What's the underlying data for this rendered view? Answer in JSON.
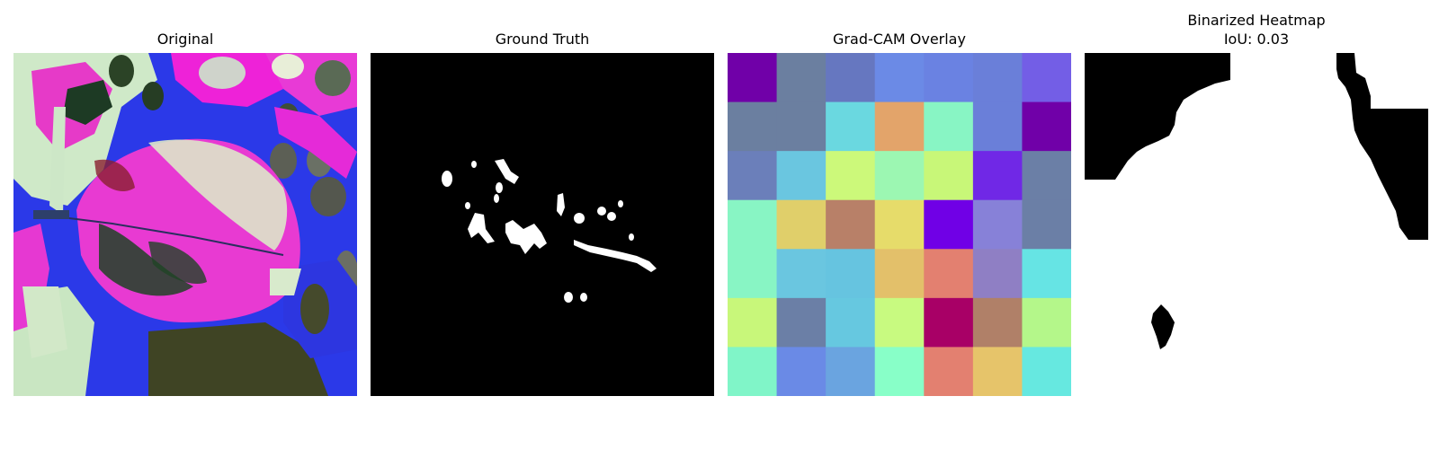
{
  "panels": [
    {
      "title": "Original"
    },
    {
      "title": "Ground Truth"
    },
    {
      "title": "Grad-CAM Overlay"
    },
    {
      "title_line1": "Binarized Heatmap",
      "title_line2": "IoU: 0.03"
    }
  ],
  "gradcam_grid": [
    [
      "#7000a8",
      "#6b7fa0",
      "#6677c0",
      "#6b8ae6",
      "#6a82e2",
      "#6a7fd9",
      "#735ee6"
    ],
    [
      "#6b7fa0",
      "#6b7fa0",
      "#6ad8e0",
      "#e3a46a",
      "#88f5c4",
      "#6a7fd9",
      "#7000a8"
    ],
    [
      "#6b7fba",
      "#6ac6e0",
      "#ccf97a",
      "#9cf7b2",
      "#c8f778",
      "#7028e6",
      "#6b7fa6"
    ],
    [
      "#88f5c4",
      "#e0cf6a",
      "#b88068",
      "#e6dc6a",
      "#7000e6",
      "#8781d8",
      "#6b7fa6"
    ],
    [
      "#88f5c4",
      "#6ac6e0",
      "#66c4e0",
      "#e3c06a",
      "#e38070",
      "#8f7fc4",
      "#66e4e4"
    ],
    [
      "#c8f77a",
      "#6b7fa6",
      "#66c8e0",
      "#c8fa80",
      "#a80066",
      "#b08068",
      "#b4f78a"
    ],
    [
      "#80f5c8",
      "#6a8ae6",
      "#6aa4e0",
      "#88ffc8",
      "#e38070",
      "#e6c46a",
      "#66e8e0"
    ]
  ]
}
